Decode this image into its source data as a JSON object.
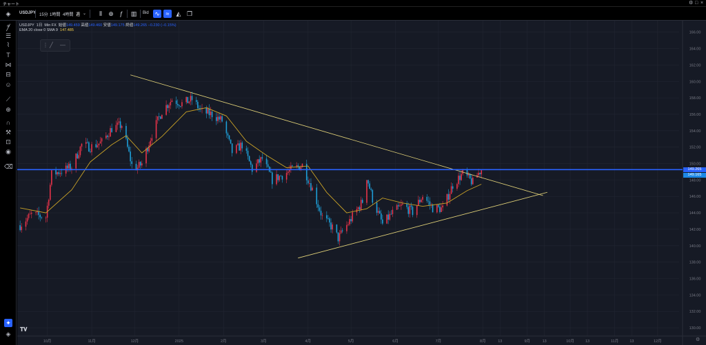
{
  "window": {
    "title": "チャート"
  },
  "toolbar": {
    "symbol": "USDJPY",
    "intervals": [
      "15分",
      "1時間",
      "4時間",
      "週"
    ],
    "interval_menu": "⌄",
    "price_type": "Bid"
  },
  "legend": {
    "symbol": "USDJPY",
    "timeframe": "1日",
    "source": "Min FX",
    "open_label": "始値",
    "open": "149.459",
    "high_label": "高値",
    "high": "149.460",
    "low_label": "安値",
    "low": "149.175",
    "close_label": "終値",
    "close": "149.265",
    "change": "−0.230 (−0.15%)",
    "ma_label": "EMA 20 close 0 SMA 9",
    "ma_value": "147.485"
  },
  "price_labels": {
    "horizontal_line": "149.265",
    "last_price": "149.165"
  },
  "colors": {
    "background": "#161a25",
    "candle_up": "#e8334a",
    "candle_down": "#1e9fd9",
    "ema": "#c9a227",
    "trendline": "#e6d67a",
    "hline": "#2962ff",
    "grid": "#222632"
  },
  "chart_data": {
    "type": "candlestick",
    "symbol": "USDJPY",
    "timeframe": "1日",
    "y_ticks": [
      130,
      132,
      134,
      136,
      138,
      140,
      142,
      144,
      146,
      148,
      150,
      152,
      154,
      156,
      158,
      160,
      162,
      164,
      166
    ],
    "ylim": [
      129,
      167.4
    ],
    "x_ticks": [
      {
        "label": "10月",
        "date": "2024-10-01"
      },
      {
        "label": "11月",
        "date": "2024-11-01"
      },
      {
        "label": "12月",
        "date": "2024-12-01"
      },
      {
        "label": "2025",
        "date": "2025-01-01"
      },
      {
        "label": "2月",
        "date": "2025-02-01"
      },
      {
        "label": "3月",
        "date": "2025-03-01"
      },
      {
        "label": "4月",
        "date": "2025-04-01"
      },
      {
        "label": "5月",
        "date": "2025-05-01"
      },
      {
        "label": "6月",
        "date": "2025-06-01"
      },
      {
        "label": "7月",
        "date": "2025-07-01"
      },
      {
        "label": "8月",
        "date": "2025-08-01"
      },
      {
        "label": "13",
        "date": "2025-08-13"
      },
      {
        "label": "9月",
        "date": "2025-09-01"
      },
      {
        "label": "13",
        "date": "2025-09-13"
      },
      {
        "label": "10月",
        "date": "2025-10-01"
      },
      {
        "label": "13",
        "date": "2025-10-13"
      },
      {
        "label": "11月",
        "date": "2025-11-01"
      },
      {
        "label": "13",
        "date": "2025-11-13"
      },
      {
        "label": "12月",
        "date": "2025-12-01"
      }
    ],
    "xlim": [
      "2024-09-10",
      "2025-12-16"
    ],
    "closes": [
      {
        "date": "2024-09-12",
        "close": 142.5
      },
      {
        "date": "2024-09-20",
        "close": 143.8
      },
      {
        "date": "2024-09-30",
        "close": 143.5
      },
      {
        "date": "2024-10-04",
        "close": 148.7
      },
      {
        "date": "2024-10-11",
        "close": 149.1
      },
      {
        "date": "2024-10-18",
        "close": 149.6
      },
      {
        "date": "2024-10-25",
        "close": 152.3
      },
      {
        "date": "2024-10-31",
        "close": 152.0
      },
      {
        "date": "2024-11-08",
        "close": 152.6
      },
      {
        "date": "2024-11-15",
        "close": 154.3
      },
      {
        "date": "2024-11-22",
        "close": 154.7
      },
      {
        "date": "2024-11-29",
        "close": 149.8
      },
      {
        "date": "2024-12-03",
        "close": 149.5
      },
      {
        "date": "2024-12-06",
        "close": 150.0
      },
      {
        "date": "2024-12-13",
        "close": 153.6
      },
      {
        "date": "2024-12-20",
        "close": 156.4
      },
      {
        "date": "2024-12-27",
        "close": 157.8
      },
      {
        "date": "2025-01-03",
        "close": 157.3
      },
      {
        "date": "2025-01-10",
        "close": 157.8
      },
      {
        "date": "2025-01-17",
        "close": 156.3
      },
      {
        "date": "2025-01-24",
        "close": 156.0
      },
      {
        "date": "2025-01-31",
        "close": 155.2
      },
      {
        "date": "2025-02-07",
        "close": 151.4
      },
      {
        "date": "2025-02-14",
        "close": 152.3
      },
      {
        "date": "2025-02-21",
        "close": 149.3
      },
      {
        "date": "2025-02-28",
        "close": 150.6
      },
      {
        "date": "2025-03-07",
        "close": 148.0
      },
      {
        "date": "2025-03-14",
        "close": 148.6
      },
      {
        "date": "2025-03-21",
        "close": 149.3
      },
      {
        "date": "2025-03-28",
        "close": 149.8
      },
      {
        "date": "2025-04-04",
        "close": 146.9
      },
      {
        "date": "2025-04-11",
        "close": 143.5
      },
      {
        "date": "2025-04-18",
        "close": 142.2
      },
      {
        "date": "2025-04-22",
        "close": 140.9
      },
      {
        "date": "2025-04-30",
        "close": 143.0
      },
      {
        "date": "2025-05-09",
        "close": 145.4
      },
      {
        "date": "2025-05-12",
        "close": 148.4
      },
      {
        "date": "2025-05-16",
        "close": 145.7
      },
      {
        "date": "2025-05-23",
        "close": 142.6
      },
      {
        "date": "2025-05-30",
        "close": 144.0
      },
      {
        "date": "2025-06-06",
        "close": 144.9
      },
      {
        "date": "2025-06-13",
        "close": 144.1
      },
      {
        "date": "2025-06-20",
        "close": 146.1
      },
      {
        "date": "2025-06-27",
        "close": 144.6
      },
      {
        "date": "2025-07-04",
        "close": 144.5
      },
      {
        "date": "2025-07-11",
        "close": 147.4
      },
      {
        "date": "2025-07-18",
        "close": 148.8
      },
      {
        "date": "2025-07-25",
        "close": 147.7
      },
      {
        "date": "2025-07-28",
        "close": 148.6
      },
      {
        "date": "2025-07-31",
        "close": 149.265
      }
    ],
    "ema_20": [
      {
        "date": "2024-09-12",
        "value": 144.6
      },
      {
        "date": "2024-09-30",
        "value": 144.0
      },
      {
        "date": "2024-10-18",
        "value": 146.8
      },
      {
        "date": "2024-10-31",
        "value": 150.2
      },
      {
        "date": "2024-11-15",
        "value": 152.3
      },
      {
        "date": "2024-11-25",
        "value": 153.4
      },
      {
        "date": "2024-12-06",
        "value": 151.3
      },
      {
        "date": "2024-12-20",
        "value": 153.3
      },
      {
        "date": "2025-01-06",
        "value": 156.3
      },
      {
        "date": "2025-01-20",
        "value": 156.8
      },
      {
        "date": "2025-02-03",
        "value": 155.8
      },
      {
        "date": "2025-02-17",
        "value": 152.7
      },
      {
        "date": "2025-03-03",
        "value": 151.0
      },
      {
        "date": "2025-03-17",
        "value": 149.5
      },
      {
        "date": "2025-04-01",
        "value": 149.7
      },
      {
        "date": "2025-04-14",
        "value": 146.5
      },
      {
        "date": "2025-04-28",
        "value": 144.0
      },
      {
        "date": "2025-05-12",
        "value": 144.5
      },
      {
        "date": "2025-05-23",
        "value": 145.8
      },
      {
        "date": "2025-06-06",
        "value": 145.2
      },
      {
        "date": "2025-06-20",
        "value": 144.8
      },
      {
        "date": "2025-07-07",
        "value": 145.2
      },
      {
        "date": "2025-07-21",
        "value": 146.7
      },
      {
        "date": "2025-07-31",
        "value": 147.485
      }
    ],
    "horizontal_line": 149.265,
    "trendlines": [
      {
        "name": "resistance",
        "from": {
          "date": "2024-11-28",
          "price": 160.8
        },
        "to": {
          "date": "2025-09-12",
          "price": 146.1
        }
      },
      {
        "name": "support",
        "from": {
          "date": "2025-03-25",
          "price": 138.5
        },
        "to": {
          "date": "2025-09-15",
          "price": 146.5
        }
      }
    ]
  }
}
